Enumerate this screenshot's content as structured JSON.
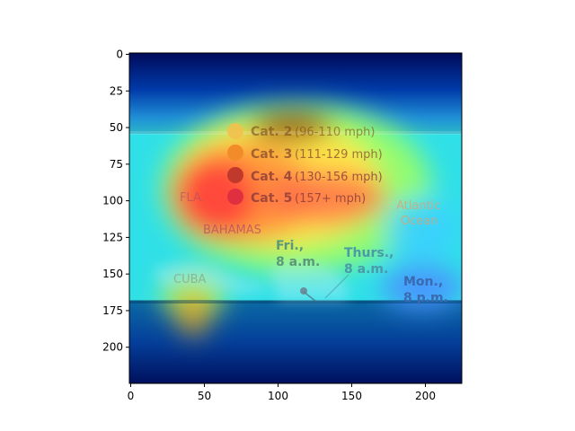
{
  "image": {
    "description_free": true,
    "x_axis": {
      "min": 0,
      "max": 224,
      "ticks": [
        0,
        50,
        100,
        150,
        200
      ]
    },
    "y_axis": {
      "min": 0,
      "max": 224,
      "ticks": [
        0,
        25,
        50,
        75,
        100,
        125,
        150,
        175,
        200
      ],
      "inverted": true
    },
    "legend_items": [
      {
        "label": "Cat. 2",
        "range": "(96-110 mph)",
        "color": "#f2c14e"
      },
      {
        "label": "Cat. 3",
        "range": "(111-129 mph)",
        "color": "#f28c28"
      },
      {
        "label": "Cat. 4",
        "range": "(130-156 mph)",
        "color": "#c0392b"
      },
      {
        "label": "Cat. 5",
        "range": "(157+ mph)",
        "color": "#e03040"
      }
    ],
    "map_labels": {
      "fla": "FLA.",
      "bahamas": "BAHAMAS",
      "cuba": "CUBA",
      "atlantic": "Atlantic",
      "ocean": "Ocean",
      "fri": "Fri.,",
      "fri_time": "8 a.m.",
      "thurs": "Thurs.,",
      "thurs_time": "8 a.m.",
      "mon": "Mon.,",
      "mon_time": "8 p.m."
    }
  }
}
